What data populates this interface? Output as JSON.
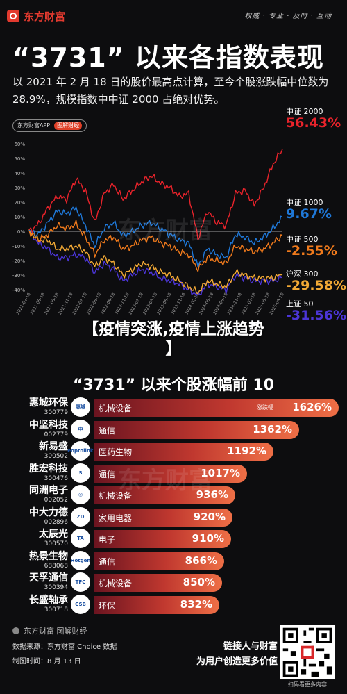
{
  "header": {
    "brand": "东方财富",
    "slogan": "权威 · 专业 · 及时 · 互动"
  },
  "title": "“3731” 以来各指数表现",
  "subtitle": "以 2021 年 2 月 18 日的股价最高点计算，至今个股涨跌幅中位数为 28.9%，规模指数中中证 2000 占绝对优势。",
  "app_pill": {
    "left": "东方财富APP",
    "right": "图解财经"
  },
  "watermark": "东方财富",
  "colors": {
    "csi2000": "#e8232b",
    "csi1000": "#1f78d8",
    "csi500": "#f07a1c",
    "hs300": "#f2a935",
    "sse50": "#4b35d6"
  },
  "chart_data": {
    "type": "line",
    "ylim": [
      -40,
      60
    ],
    "yticks": [
      "60%",
      "50%",
      "40%",
      "30%",
      "20%",
      "10%",
      "0%",
      "-10%",
      "-20%",
      "-30%",
      "-40%"
    ],
    "xticks": [
      "2021-02-18",
      "2021-05-18",
      "2021-08-18",
      "2021-11-18",
      "2022-02-18",
      "2022-05-18",
      "2022-08-18",
      "2022-11-18",
      "2023-02-18",
      "2023-05-18",
      "2023-08-18",
      "2023-11-18",
      "2024-02-18",
      "2024-05-18",
      "2024-08-18",
      "2024-11-18",
      "2025-02-18",
      "2025-05-18",
      "2025-08-18"
    ],
    "x": [
      "2021-02",
      "2021-04",
      "2021-06",
      "2021-08",
      "2021-10",
      "2021-12",
      "2022-02",
      "2022-04",
      "2022-06",
      "2022-08",
      "2022-10",
      "2022-12",
      "2023-02",
      "2023-04",
      "2023-06",
      "2023-08",
      "2023-10",
      "2023-12",
      "2024-02",
      "2024-04",
      "2024-06",
      "2024-08",
      "2024-10",
      "2024-12",
      "2025-02",
      "2025-04",
      "2025-06",
      "2025-08"
    ],
    "series": [
      {
        "name": "中证 2000",
        "end_label": "56.43%",
        "values": [
          0,
          5,
          16,
          24,
          22,
          36,
          28,
          6,
          26,
          32,
          22,
          28,
          34,
          38,
          33,
          30,
          24,
          26,
          -5,
          14,
          6,
          4,
          26,
          28,
          18,
          30,
          46,
          56.43
        ]
      },
      {
        "name": "中证 1000",
        "end_label": "9.67%",
        "values": [
          0,
          -2,
          6,
          14,
          12,
          16,
          4,
          -10,
          2,
          6,
          -3,
          0,
          4,
          6,
          2,
          -2,
          -6,
          -8,
          -24,
          -12,
          -16,
          -18,
          -2,
          -4,
          -8,
          -4,
          2,
          9.67
        ]
      },
      {
        "name": "中证 500",
        "end_label": "-2.55%",
        "values": [
          0,
          -6,
          -2,
          4,
          2,
          5,
          -4,
          -16,
          -6,
          -4,
          -12,
          -10,
          -6,
          -4,
          -8,
          -10,
          -14,
          -16,
          -26,
          -18,
          -20,
          -22,
          -10,
          -12,
          -14,
          -12,
          -8,
          -2.55
        ]
      },
      {
        "name": "沪深 300",
        "end_label": "-29.58%",
        "values": [
          0,
          -6,
          -6,
          -12,
          -12,
          -10,
          -14,
          -24,
          -18,
          -22,
          -30,
          -26,
          -22,
          -24,
          -28,
          -30,
          -34,
          -38,
          -42,
          -34,
          -36,
          -38,
          -28,
          -30,
          -32,
          -32,
          -32,
          -29.58
        ]
      },
      {
        "name": "上证 50",
        "end_label": "-31.56%",
        "values": [
          0,
          -8,
          -12,
          -18,
          -18,
          -16,
          -18,
          -28,
          -22,
          -26,
          -34,
          -30,
          -26,
          -28,
          -32,
          -34,
          -36,
          -40,
          -44,
          -36,
          -38,
          -40,
          -30,
          -32,
          -34,
          -34,
          -34,
          -31.56
        ]
      }
    ]
  },
  "banner": {
    "line1": "【疫情突涨,疫情上涨趋势",
    "line2": "】"
  },
  "top10": {
    "title": "“3731” 以来个股涨幅前 10",
    "bar_note": "涨跌幅",
    "max_value": 1626,
    "items": [
      {
        "name": "惠城环保",
        "code": "300779",
        "industry": "机械设备",
        "value": 1626,
        "label": "1626%",
        "logo": "惠城"
      },
      {
        "name": "中坚科技",
        "code": "002779",
        "industry": "通信",
        "value": 1362,
        "label": "1362%",
        "logo": "中"
      },
      {
        "name": "新易盛",
        "code": "300502",
        "industry": "医药生物",
        "value": 1192,
        "label": "1192%",
        "logo": "eoptolink"
      },
      {
        "name": "胜宏科技",
        "code": "300476",
        "industry": "通信",
        "value": 1017,
        "label": "1017%",
        "logo": "S"
      },
      {
        "name": "同洲电子",
        "code": "002052",
        "industry": "机械设备",
        "value": 936,
        "label": "936%",
        "logo": "◎"
      },
      {
        "name": "中大力德",
        "code": "002896",
        "industry": "家用电器",
        "value": 920,
        "label": "920%",
        "logo": "ZD"
      },
      {
        "name": "太辰光",
        "code": "300570",
        "industry": "电子",
        "value": 910,
        "label": "910%",
        "logo": "TA"
      },
      {
        "name": "热景生物",
        "code": "688068",
        "industry": "通信",
        "value": 866,
        "label": "866%",
        "logo": "Hotgen"
      },
      {
        "name": "天孚通信",
        "code": "300394",
        "industry": "机械设备",
        "value": 850,
        "label": "850%",
        "logo": "TFC"
      },
      {
        "name": "长盛轴承",
        "code": "300718",
        "industry": "环保",
        "value": 832,
        "label": "832%",
        "logo": "CSB"
      }
    ]
  },
  "footer": {
    "brand": "东方财富 图解财经",
    "source": "数据来源：东方财富 Choice 数据",
    "date": "制图时间：8 月 13 日",
    "slogan_line1": "链接人与财富",
    "slogan_line2": "为用户创造更多价值",
    "qr_caption": "扫码看更多内容"
  }
}
